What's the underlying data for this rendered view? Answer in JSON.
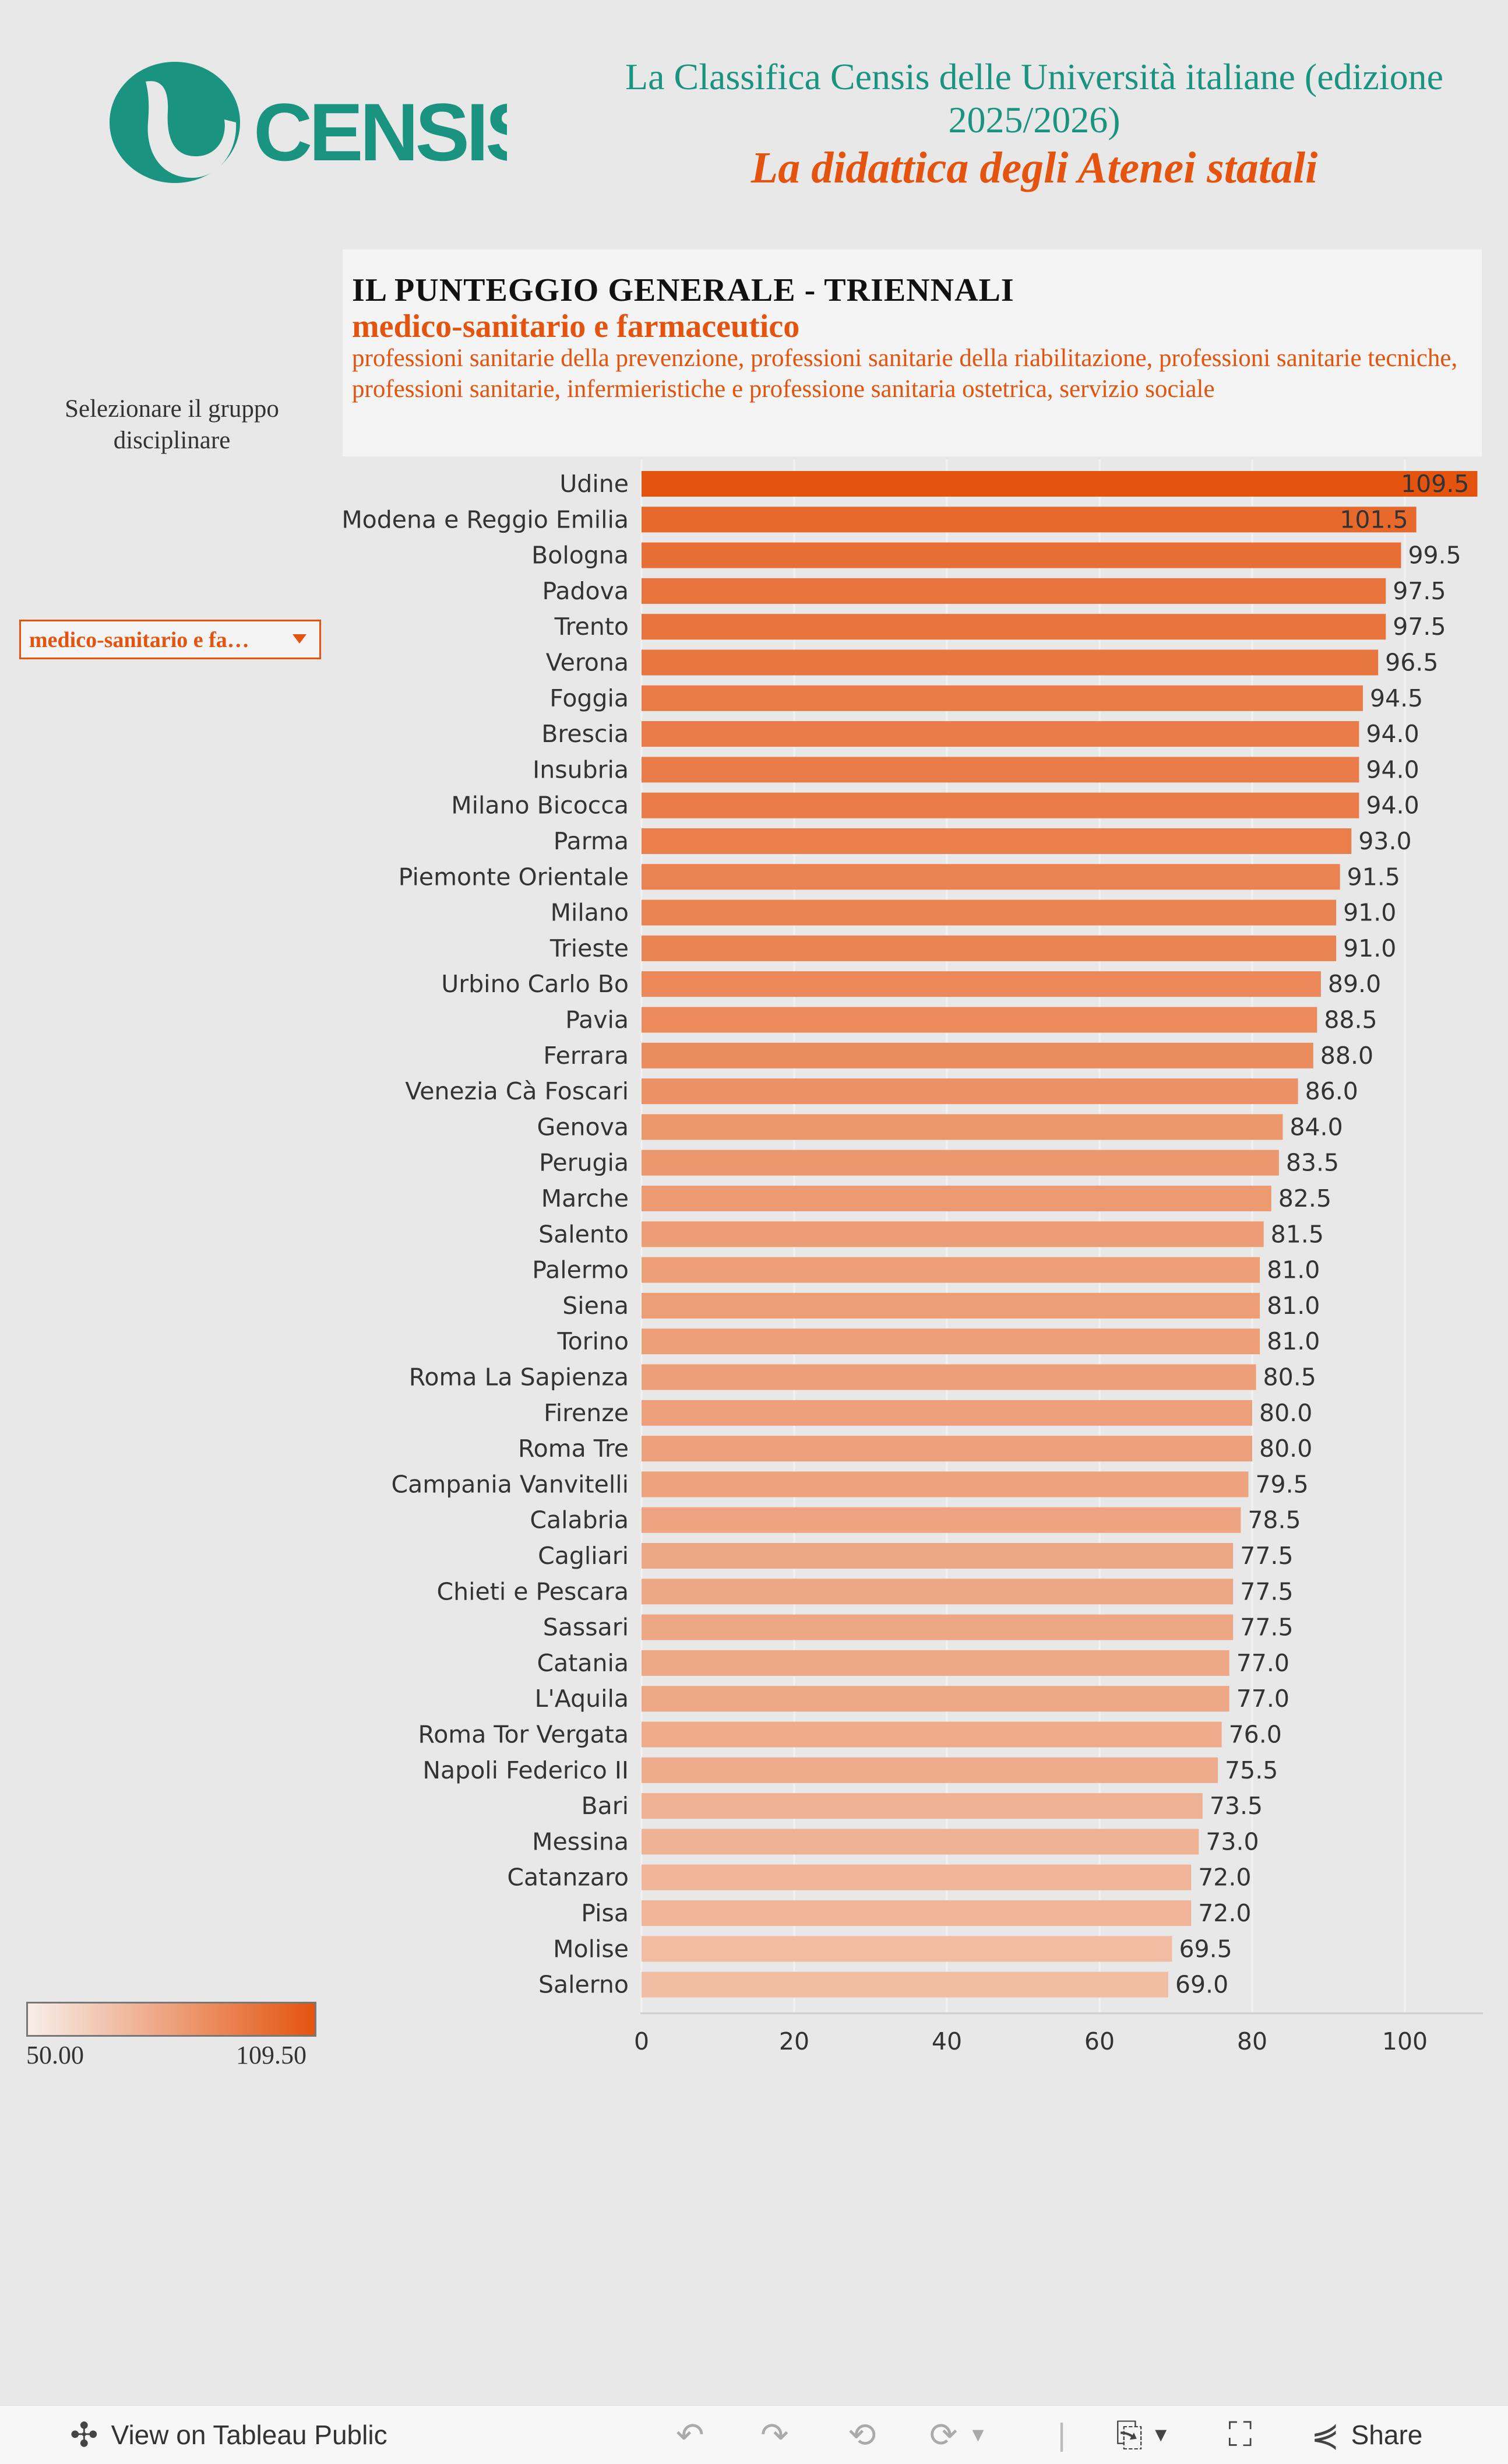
{
  "header": {
    "title": "La Classifica Censis delle Università italiane (edizione 2025/2026)",
    "subtitle": "La didattica degli Atenei statali",
    "logo_text": "CENSIS",
    "brand_color": "#1a9480",
    "accent_color": "#e4540f"
  },
  "chart_header": {
    "title": "IL PUNTEGGIO GENERALE - TRIENNALI",
    "group": "medico-sanitario e farmaceutico",
    "description": "professioni sanitarie della prevenzione, professioni sanitarie della riabilitazione, professioni sanitarie tecniche, professioni sanitarie, infermieristiche e professione sanitaria ostetrica, servizio sociale"
  },
  "filter": {
    "label": "Selezionare il gruppo disciplinare",
    "selected_value": "medico-sanitario e fa…",
    "icon": "chevron-down-icon"
  },
  "legend": {
    "min_label": "50.00",
    "max_label": "109.50",
    "min_color": "#f7eee9",
    "max_color": "#e4540f"
  },
  "chart_data": {
    "type": "bar",
    "orientation": "horizontal",
    "categories": [
      "Udine",
      "Modena e Reggio Emilia",
      "Bologna",
      "Padova",
      "Trento",
      "Verona",
      "Foggia",
      "Brescia",
      "Insubria",
      "Milano Bicocca",
      "Parma",
      "Piemonte Orientale",
      "Milano",
      "Trieste",
      "Urbino Carlo Bo",
      "Pavia",
      "Ferrara",
      "Venezia Cà Foscari",
      "Genova",
      "Perugia",
      "Marche",
      "Salento",
      "Palermo",
      "Siena",
      "Torino",
      "Roma La Sapienza",
      "Firenze",
      "Roma Tre",
      "Campania Vanvitelli",
      "Calabria",
      "Cagliari",
      "Chieti e Pescara",
      "Sassari",
      "Catania",
      "L'Aquila",
      "Roma Tor Vergata",
      "Napoli Federico II",
      "Bari",
      "Messina",
      "Catanzaro",
      "Pisa",
      "Molise",
      "Salerno"
    ],
    "values": [
      109.5,
      101.5,
      99.5,
      97.5,
      97.5,
      96.5,
      94.5,
      94.0,
      94.0,
      94.0,
      93.0,
      91.5,
      91.0,
      91.0,
      89.0,
      88.5,
      88.0,
      86.0,
      84.0,
      83.5,
      82.5,
      81.5,
      81.0,
      81.0,
      81.0,
      80.5,
      80.0,
      80.0,
      79.5,
      78.5,
      77.5,
      77.5,
      77.5,
      77.0,
      77.0,
      76.0,
      75.5,
      73.5,
      73.0,
      72.0,
      72.0,
      69.5,
      69.0
    ],
    "value_labels": [
      "109.5",
      "101.5",
      "99.5",
      "97.5",
      "97.5",
      "96.5",
      "94.5",
      "94.0",
      "94.0",
      "94.0",
      "93.0",
      "91.5",
      "91.0",
      "91.0",
      "89.0",
      "88.5",
      "88.0",
      "86.0",
      "84.0",
      "83.5",
      "82.5",
      "81.5",
      "81.0",
      "81.0",
      "81.0",
      "80.5",
      "80.0",
      "80.0",
      "79.5",
      "78.5",
      "77.5",
      "77.5",
      "77.5",
      "77.0",
      "77.0",
      "76.0",
      "75.5",
      "73.5",
      "73.0",
      "72.0",
      "72.0",
      "69.5",
      "69.0"
    ],
    "xlim": [
      0,
      110
    ],
    "xticks": [
      "0",
      "20",
      "40",
      "60",
      "80",
      "100"
    ],
    "xtick_values": [
      0,
      20,
      40,
      60,
      80,
      100
    ],
    "color_range": [
      50.0,
      109.5
    ],
    "grid": true
  },
  "toolbar": {
    "view_label": "View on Tableau Public",
    "share_label": "Share"
  }
}
